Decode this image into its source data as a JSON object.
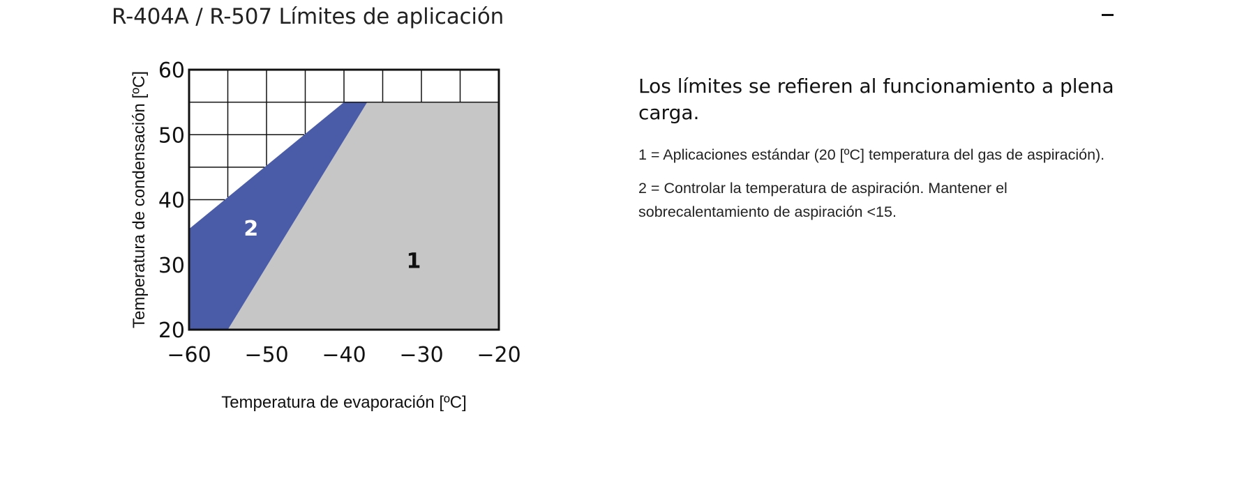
{
  "section": {
    "title": "R-404A / R-507 Límites de aplicación",
    "toggle_icon": "minus-icon"
  },
  "info": {
    "heading": "Los límites se refieren al funcionamiento a plena carga.",
    "notes": [
      "1 = Aplicaciones estándar (20 [ºC] temperatura del gas de aspiración).",
      "2 = Controlar la temperatura de aspiración. Mantener el sobrecalentamiento de aspiración <15."
    ]
  },
  "chart_data": {
    "type": "area",
    "xlabel": "Temperatura de evaporación [ºC]",
    "ylabel": "Temperatura de condensación [ºC]",
    "xlim": [
      -60,
      -20
    ],
    "ylim": [
      20,
      60
    ],
    "x_ticks": [
      "−60",
      "−50",
      "−40",
      "−30",
      "−20"
    ],
    "y_ticks": [
      "20",
      "30",
      "40",
      "50",
      "60"
    ],
    "grid": true,
    "colors": {
      "region_1": "#c6c6c6",
      "region_2": "#4a5ca8",
      "grid": "#111111",
      "label_1": "#111111",
      "label_2": "#ffffff"
    },
    "regions": [
      {
        "label": "1",
        "points": [
          [
            -55,
            20
          ],
          [
            -37,
            55
          ],
          [
            -20,
            55
          ],
          [
            -20,
            20
          ]
        ],
        "label_position": [
          -31,
          30.5
        ]
      },
      {
        "label": "2",
        "points": [
          [
            -60,
            20
          ],
          [
            -60,
            35.5
          ],
          [
            -40,
            55
          ],
          [
            -37,
            55
          ],
          [
            -55,
            20
          ]
        ],
        "label_position": [
          -52,
          35.5
        ]
      }
    ]
  }
}
